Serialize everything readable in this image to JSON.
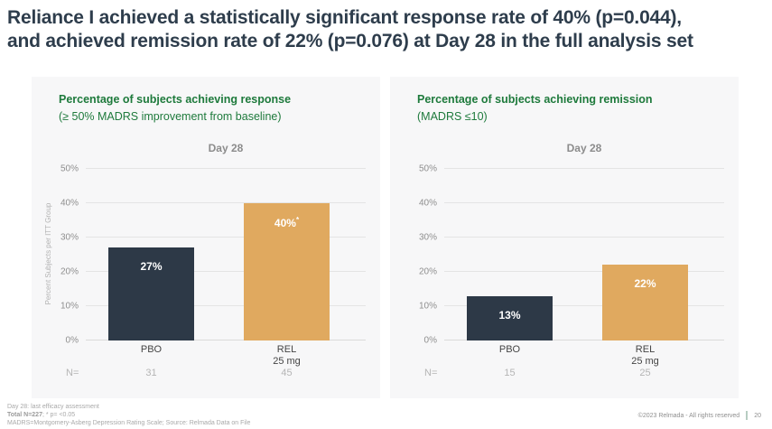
{
  "slide": {
    "title_line1": "Reliance I achieved a statistically significant response rate of 40% (p=0.044),",
    "title_line2": "and achieved remission rate of 22% (p=0.076) at Day 28 in the full analysis set"
  },
  "colors": {
    "title_text": "#2e3d4c",
    "heading_green": "#1e7a3c",
    "bar_dark": "#2d3947",
    "bar_orange": "#e0a95f",
    "panel_background": "#f7f7f8"
  },
  "chart_data": [
    {
      "type": "bar",
      "title": "Percentage of subjects achieving response",
      "subtitle": "(≥ 50% MADRS improvement from baseline)",
      "group_header": "Day 28",
      "ylabel": "Percent Subjects per ITT Group",
      "ylim": [
        0,
        50
      ],
      "yticks": [
        "0%",
        "10%",
        "20%",
        "30%",
        "40%",
        "50%"
      ],
      "grid": "horizontal",
      "legend": "none",
      "categories": [
        {
          "label": "PBO",
          "sublabel": ""
        },
        {
          "label": "REL",
          "sublabel": "25 mg"
        }
      ],
      "values": [
        27,
        40
      ],
      "bar_labels": [
        {
          "text": "27%",
          "sup": ""
        },
        {
          "text": "40%",
          "sup": "*"
        }
      ],
      "bar_colors": [
        "#2d3947",
        "#e0a95f"
      ],
      "n_label": "N=",
      "n_values": [
        "31",
        "45"
      ]
    },
    {
      "type": "bar",
      "title": "Percentage of subjects achieving remission",
      "subtitle": "(MADRS ≤10)",
      "group_header": "Day 28",
      "ylabel": "",
      "ylim": [
        0,
        50
      ],
      "yticks": [
        "0%",
        "10%",
        "20%",
        "30%",
        "40%",
        "50%"
      ],
      "grid": "horizontal",
      "legend": "none",
      "categories": [
        {
          "label": "PBO",
          "sublabel": ""
        },
        {
          "label": "REL",
          "sublabel": "25 mg"
        }
      ],
      "values": [
        13,
        22
      ],
      "bar_labels": [
        {
          "text": "13%",
          "sup": ""
        },
        {
          "text": "22%",
          "sup": ""
        }
      ],
      "bar_colors": [
        "#2d3947",
        "#e0a95f"
      ],
      "n_label": "N=",
      "n_values": [
        "15",
        "25"
      ]
    }
  ],
  "footnotes": {
    "line1": "Day 28: last efficacy assessment",
    "line2_bold": "Total N=227",
    "line2_rest": "; * p= <0.05",
    "line3": "MADRS=Montgomery-Asberg Depression Rating Scale; Source: Relmada Data on File"
  },
  "page_footer": {
    "copyright": "©2023 Relmada - All rights reserved",
    "page_number": "20"
  }
}
